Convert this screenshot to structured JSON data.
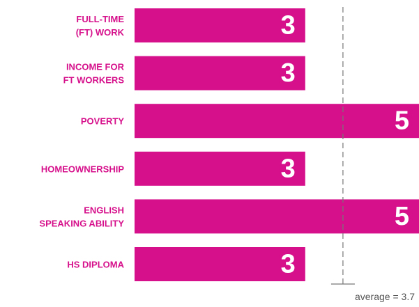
{
  "chart_data": {
    "type": "bar",
    "orientation": "horizontal",
    "categories": [
      "FULL-TIME\n(FT) WORK",
      "INCOME FOR\nFT WORKERS",
      "POVERTY",
      "HOMEOWNERSHIP",
      "ENGLISH\nSPEAKING ABILITY",
      "HS DIPLOMA"
    ],
    "values": [
      3,
      3,
      5,
      3,
      5,
      3
    ],
    "color": "#d6108b",
    "xlim": [
      0,
      5
    ],
    "average": 3.7,
    "average_label": "average = 3.7"
  }
}
